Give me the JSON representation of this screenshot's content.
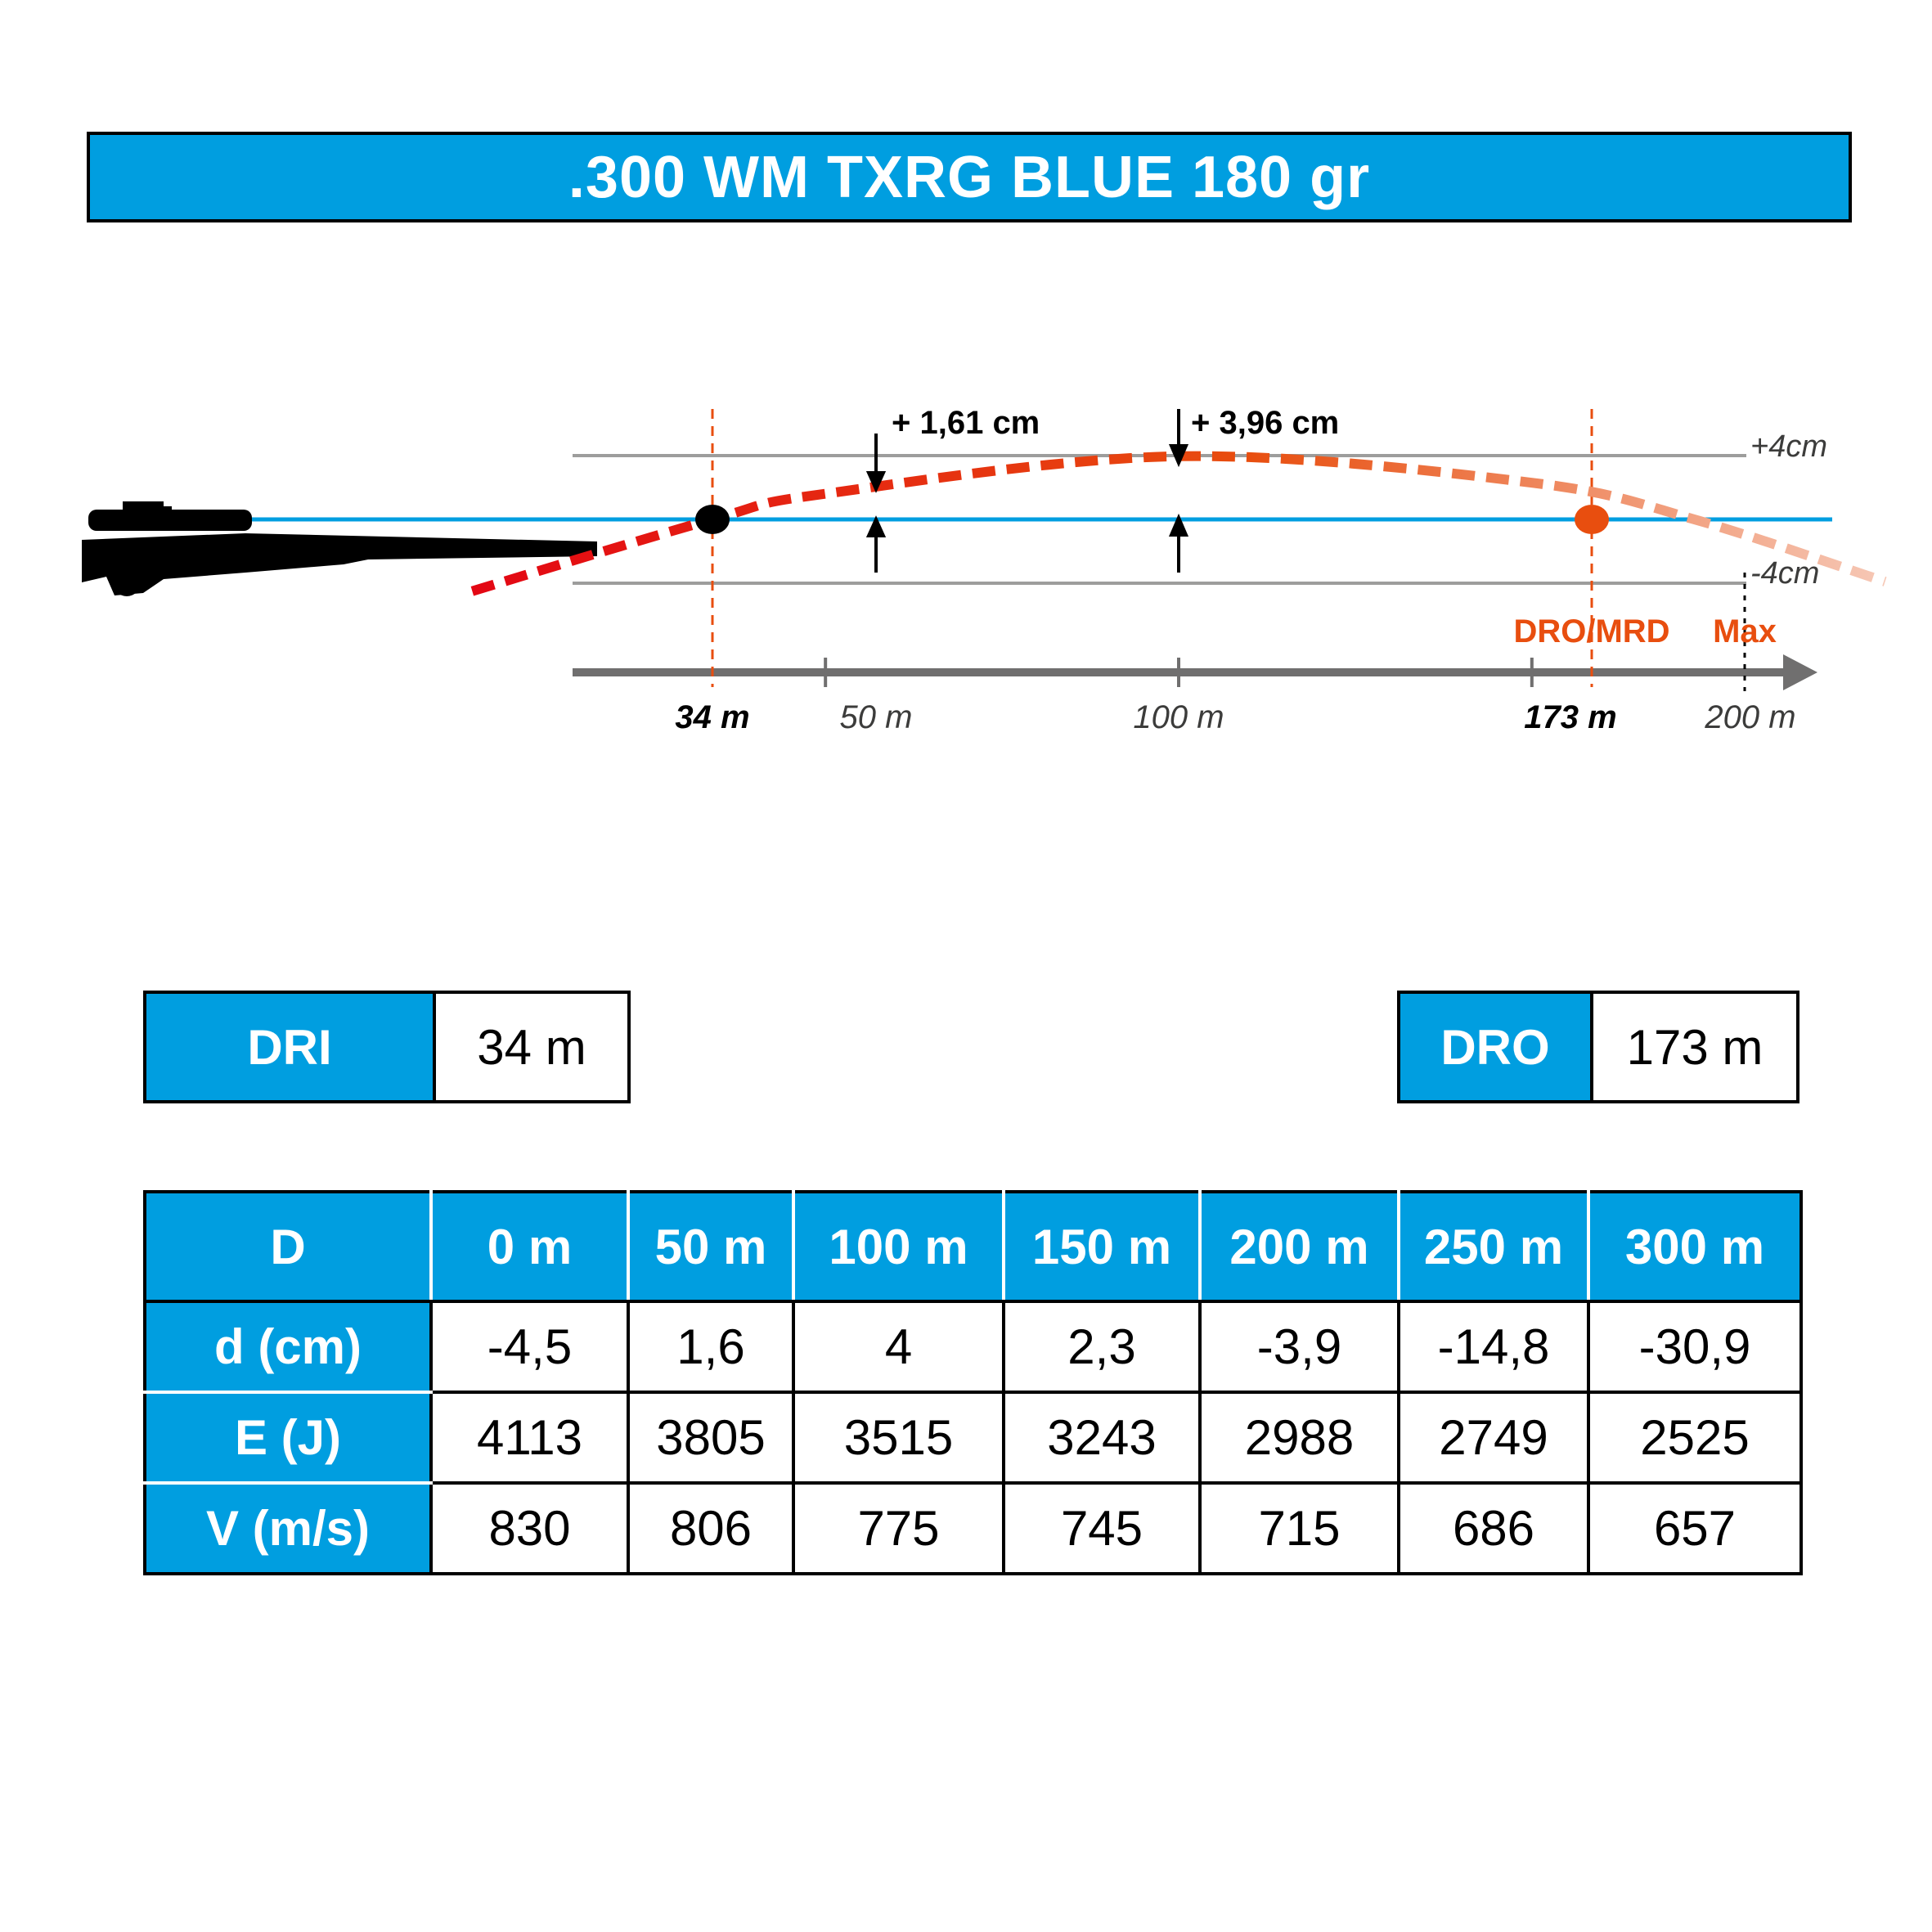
{
  "title": ".300 WM TXRG BLUE 180 gr",
  "chart_data": {
    "type": "line",
    "x_ticks": [
      "34 m",
      "50 m",
      "100 m",
      "173 m",
      "200 m"
    ],
    "band_labels": {
      "upper": "+4cm",
      "lower": "-4cm"
    },
    "markers": {
      "dro": "DRO/MRD",
      "max": "Max"
    },
    "callouts": [
      {
        "x": 50,
        "label": "+ 1,61 cm"
      },
      {
        "x": 100,
        "label": "+ 3,96 cm"
      }
    ],
    "trajectory": {
      "x": [
        0,
        34,
        50,
        100,
        150,
        173,
        200
      ],
      "y": [
        -4.5,
        0,
        1.61,
        3.96,
        2.3,
        0,
        -3.9
      ]
    },
    "ylim": [
      -4,
      4
    ],
    "xlim": [
      -10,
      200
    ],
    "colors": {
      "accent": "#009ee0",
      "trajectory": "#e30613",
      "dro": "#e84e0f"
    }
  },
  "summary": {
    "dri": {
      "label": "DRI",
      "value": "34 m"
    },
    "dro": {
      "label": "DRO",
      "value": "173 m"
    }
  },
  "table": {
    "header": [
      "D",
      "0 m",
      "50 m",
      "100 m",
      "150 m",
      "200 m",
      "250 m",
      "300 m"
    ],
    "rows": [
      {
        "label": "d (cm)",
        "values": [
          "-4,5",
          "1,6",
          "4",
          "2,3",
          "-3,9",
          "-14,8",
          "-30,9"
        ]
      },
      {
        "label": "E (J)",
        "values": [
          "4113",
          "3805",
          "3515",
          "3243",
          "2988",
          "2749",
          "2525"
        ]
      },
      {
        "label": "V (m/s)",
        "values": [
          "830",
          "806",
          "775",
          "745",
          "715",
          "686",
          "657"
        ]
      }
    ]
  }
}
